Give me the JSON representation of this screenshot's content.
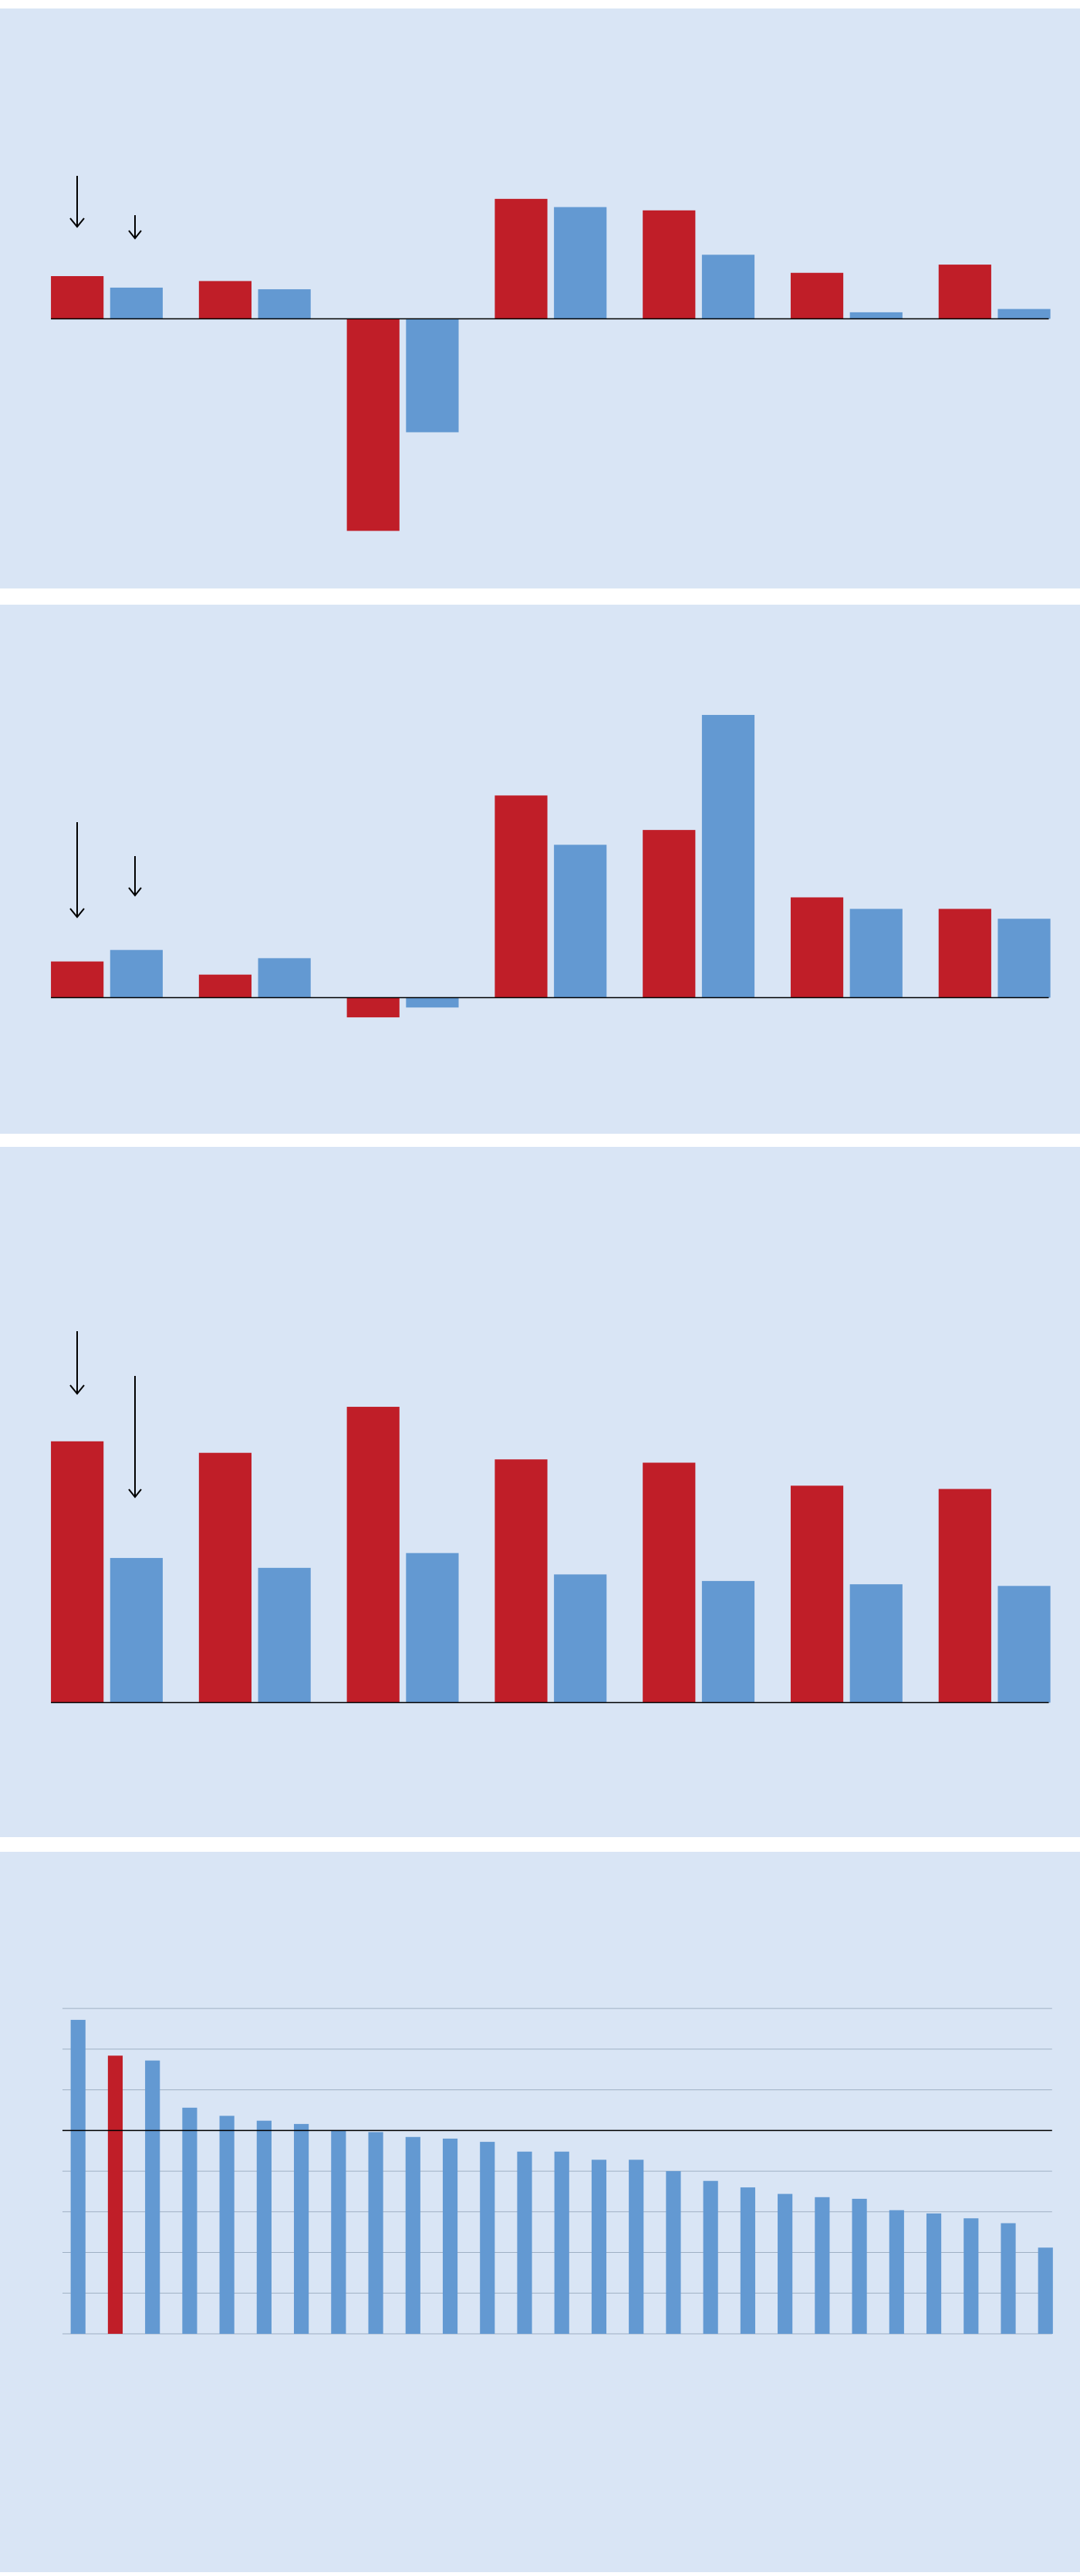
{
  "chart_data": [
    {
      "type": "bar",
      "ylim": [
        -160,
        190
      ],
      "series": [
        {
          "color": "#c01e28",
          "values": [
            26,
            23,
            -129,
            73,
            66,
            28,
            33
          ]
        },
        {
          "color": "#6399d2",
          "values": [
            19,
            18,
            -69,
            68,
            39,
            4,
            6
          ]
        }
      ]
    },
    {
      "type": "bar",
      "ylim": [
        -80,
        235
      ],
      "series": [
        {
          "color": "#c01e28",
          "values": [
            22,
            14,
            -12,
            123,
            102,
            61,
            54
          ]
        },
        {
          "color": "#6399d2",
          "values": [
            29,
            24,
            -6,
            93,
            172,
            54,
            48
          ]
        }
      ]
    },
    {
      "type": "bar",
      "ylim": [
        -80,
        335
      ],
      "series": [
        {
          "color": "#c01e28",
          "values": [
            159,
            152,
            180,
            148,
            146,
            132,
            130
          ]
        },
        {
          "color": "#6399d2",
          "values": [
            88,
            82,
            91,
            78,
            74,
            72,
            71
          ]
        }
      ]
    },
    {
      "type": "ranked-bar",
      "ylim": [
        -145,
        293
      ],
      "yticks": [
        0,
        25,
        50,
        75,
        100,
        125,
        150,
        175,
        200
      ],
      "grid": true,
      "reference_line": 125,
      "values": [
        193,
        171,
        168,
        139,
        134,
        131,
        129,
        125,
        124,
        121,
        120,
        118,
        112,
        112,
        107,
        107,
        100,
        94,
        90,
        86,
        84,
        83,
        76,
        74,
        71,
        68,
        53
      ],
      "colors": [
        "#6399d2",
        "#c01e28",
        "#6399d2",
        "#6399d2",
        "#6399d2",
        "#6399d2",
        "#6399d2",
        "#6399d2",
        "#6399d2",
        "#6399d2",
        "#6399d2",
        "#6399d2",
        "#6399d2",
        "#6399d2",
        "#6399d2",
        "#6399d2",
        "#6399d2",
        "#6399d2",
        "#6399d2",
        "#6399d2",
        "#6399d2",
        "#6399d2",
        "#6399d2",
        "#6399d2",
        "#6399d2",
        "#6399d2",
        "#6399d2"
      ]
    }
  ]
}
